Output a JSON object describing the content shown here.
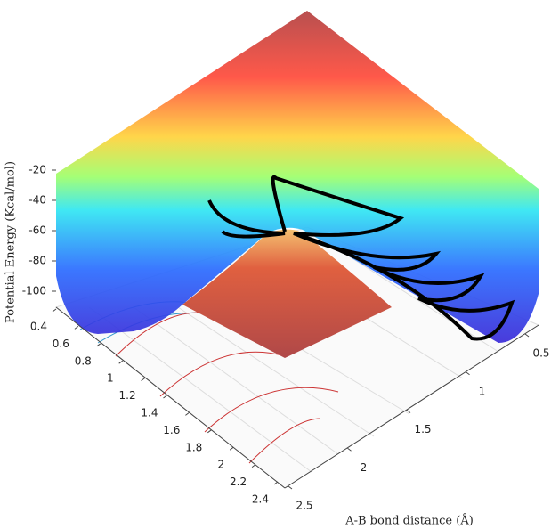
{
  "chart_data": {
    "type": "surface",
    "zlabel": "Potential Energy  (Kcal/mol)",
    "ylabel": "A-B bond distance (Å)",
    "xlim": [
      0.4,
      2.4
    ],
    "xticks": [
      0.4,
      0.6,
      0.8,
      1,
      1.2,
      1.4,
      1.6,
      1.8,
      2,
      2.2,
      2.4
    ],
    "ylim": [
      0.5,
      2.5
    ],
    "yticks": [
      0.5,
      1,
      1.5,
      2,
      2.5
    ],
    "zlim": [
      -100,
      -20
    ],
    "zticks": [
      -20,
      -40,
      -60,
      -80,
      -100
    ]
  }
}
